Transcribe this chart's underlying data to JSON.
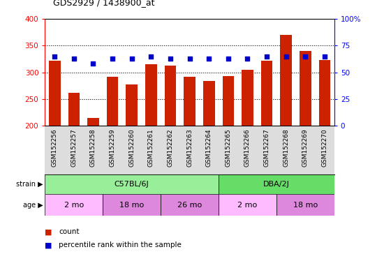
{
  "title": "GDS2929 / 1438900_at",
  "samples": [
    "GSM152256",
    "GSM152257",
    "GSM152258",
    "GSM152259",
    "GSM152260",
    "GSM152261",
    "GSM152262",
    "GSM152263",
    "GSM152264",
    "GSM152265",
    "GSM152266",
    "GSM152267",
    "GSM152268",
    "GSM152269",
    "GSM152270"
  ],
  "counts": [
    322,
    262,
    215,
    292,
    277,
    315,
    312,
    292,
    284,
    293,
    305,
    322,
    370,
    340,
    323
  ],
  "percentile_ranks": [
    65,
    63,
    58,
    63,
    63,
    65,
    63,
    63,
    63,
    63,
    63,
    65,
    65,
    65,
    65
  ],
  "bar_color": "#cc2200",
  "dot_color": "#0000cc",
  "ylim_left": [
    200,
    400
  ],
  "ylim_right": [
    0,
    100
  ],
  "yticks_left": [
    200,
    250,
    300,
    350,
    400
  ],
  "yticks_right": [
    0,
    25,
    50,
    75,
    100
  ],
  "strain_groups": [
    {
      "label": "C57BL/6J",
      "start": 0,
      "end": 9,
      "color": "#99ee99"
    },
    {
      "label": "DBA/2J",
      "start": 9,
      "end": 15,
      "color": "#66dd66"
    }
  ],
  "age_groups": [
    {
      "label": "2 mo",
      "start": 0,
      "end": 3,
      "color": "#ffbbff"
    },
    {
      "label": "18 mo",
      "start": 3,
      "end": 6,
      "color": "#dd88dd"
    },
    {
      "label": "26 mo",
      "start": 6,
      "end": 9,
      "color": "#dd88dd"
    },
    {
      "label": "2 mo",
      "start": 9,
      "end": 12,
      "color": "#ffbbff"
    },
    {
      "label": "18 mo",
      "start": 12,
      "end": 15,
      "color": "#dd88dd"
    }
  ],
  "background_color": "#ffffff",
  "plot_bg_color": "#ffffff",
  "tick_area_color": "#dddddd",
  "legend_items": [
    {
      "label": "count",
      "color": "#cc2200"
    },
    {
      "label": "percentile rank within the sample",
      "color": "#0000cc"
    }
  ]
}
